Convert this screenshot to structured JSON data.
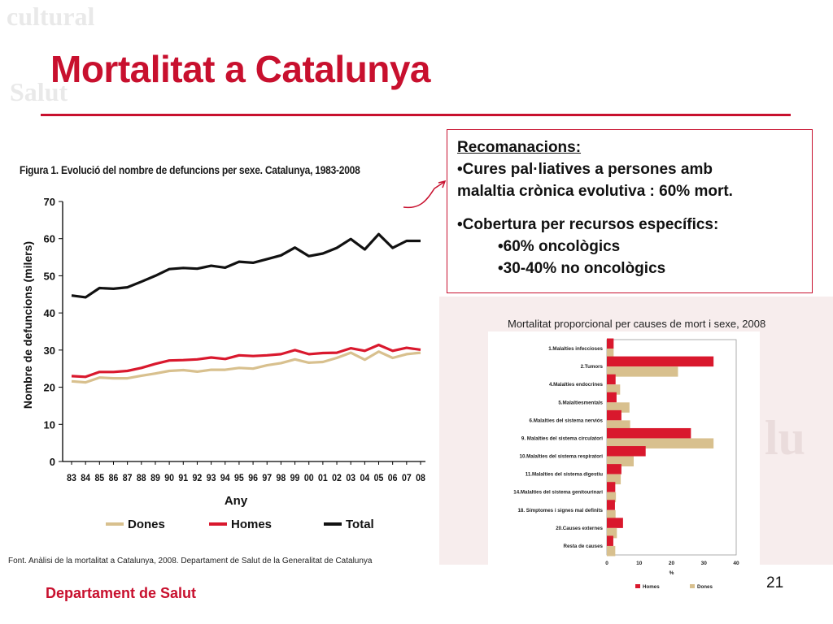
{
  "slide": {
    "title": "Mortalitat a Catalunya",
    "footer_org": "Departament de Salut",
    "page_number": "21",
    "accent_color": "#c8102e"
  },
  "recommendations": {
    "heading": "Recomanacions:",
    "line1": "•Cures pal·liatives a persones amb",
    "line2": "malaltia crònica evolutiva : 60% mort.",
    "line3": "•Cobertura per recursos específics:",
    "line4": "•60% oncològics",
    "line5": "•30-40% no oncològics"
  },
  "source_note": "Font. Anàlisi de la mortalitat a Catalunya, 2008. Departament de Salut de la Generalitat de Catalunya",
  "bar_caption": "Mortalitat proporcional per causes de mort i sexe, 2008",
  "chart_data": [
    {
      "type": "line",
      "title": "Figura 1.  Evolució del nombre de defuncions per sexe. Catalunya, 1983-2008",
      "xlabel": "Any",
      "ylabel": "Nombre de defuncions (milers)",
      "x": [
        "83",
        "84",
        "85",
        "86",
        "87",
        "88",
        "89",
        "90",
        "91",
        "92",
        "93",
        "94",
        "95",
        "96",
        "97",
        "98",
        "99",
        "00",
        "01",
        "02",
        "03",
        "04",
        "05",
        "06",
        "07",
        "08"
      ],
      "ylim": [
        0,
        70
      ],
      "yticks": [
        0,
        10,
        20,
        30,
        40,
        50,
        60,
        70
      ],
      "grid": false,
      "legend_position": "bottom",
      "series": [
        {
          "name": "Dones",
          "color": "#d8c08e",
          "values": [
            21.6,
            21.3,
            22.6,
            22.4,
            22.4,
            23.1,
            23.7,
            24.4,
            24.6,
            24.2,
            24.7,
            24.7,
            25.2,
            25.0,
            25.9,
            26.5,
            27.5,
            26.6,
            26.8,
            27.9,
            29.3,
            27.4,
            29.6,
            27.9,
            28.9,
            29.3
          ]
        },
        {
          "name": "Homes",
          "color": "#d9182d",
          "values": [
            23.0,
            22.8,
            24.1,
            24.1,
            24.4,
            25.2,
            26.3,
            27.2,
            27.3,
            27.5,
            28.0,
            27.6,
            28.6,
            28.4,
            28.6,
            28.9,
            30.0,
            28.9,
            29.2,
            29.3,
            30.5,
            29.8,
            31.4,
            29.8,
            30.6,
            30.1
          ]
        },
        {
          "name": "Total",
          "color": "#111111",
          "values": [
            44.7,
            44.2,
            46.7,
            46.5,
            46.9,
            48.4,
            50.0,
            51.8,
            52.1,
            51.9,
            52.7,
            52.2,
            53.8,
            53.5,
            54.5,
            55.5,
            57.6,
            55.3,
            56.0,
            57.5,
            59.9,
            57.1,
            61.2,
            57.5,
            59.4,
            59.4
          ]
        }
      ]
    },
    {
      "type": "bar",
      "orientation": "horizontal",
      "categories": [
        "1.Malalties infeccioses",
        "2.Tumors",
        "4.Malalties endocrines",
        "5.Malaltiesmentals",
        "6.Malalties del sistema nerviós",
        "9. Malalties del sistema circulatori",
        "10.Malalties del sistema respiratori",
        "11.Malalties del sistema digestiu",
        "14.Malalties del sistema genitourinari",
        "18. Símptomes i signes mal definits",
        "20.Causes externes",
        "Resta de causes"
      ],
      "xlabel": "%",
      "xlim": [
        0,
        40
      ],
      "xticks": [
        0,
        10,
        20,
        30,
        40
      ],
      "legend_position": "bottom",
      "series": [
        {
          "name": "Homes",
          "color": "#d9182d",
          "values": [
            2.1,
            33.0,
            2.7,
            3.0,
            4.5,
            26.0,
            12.0,
            4.5,
            2.6,
            2.5,
            5.0,
            2.0
          ]
        },
        {
          "name": "Dones",
          "color": "#d8c08e",
          "values": [
            2.1,
            22.0,
            4.1,
            7.0,
            7.2,
            33.0,
            8.3,
            4.3,
            2.8,
            2.7,
            3.1,
            2.6
          ]
        }
      ]
    }
  ]
}
